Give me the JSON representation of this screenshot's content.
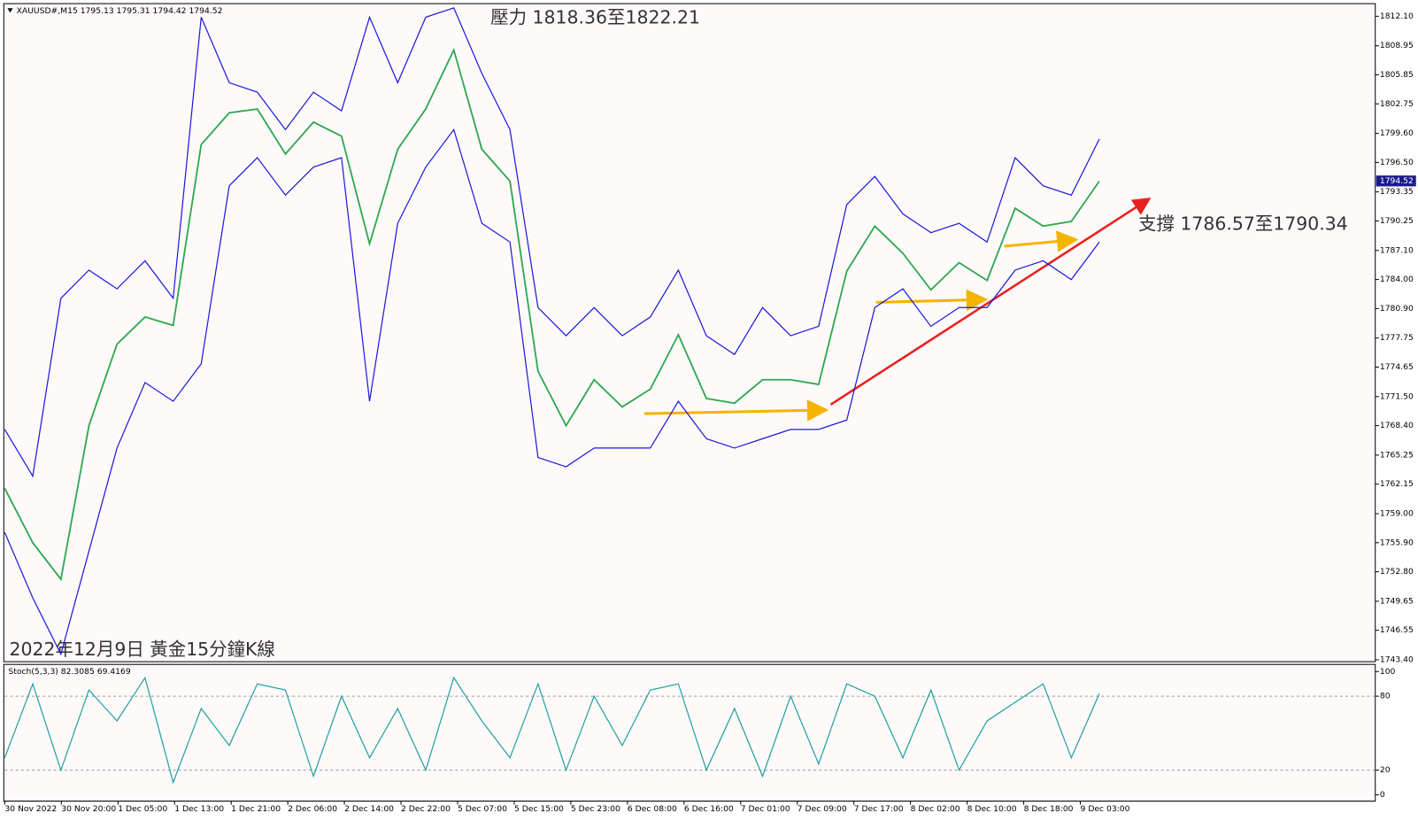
{
  "chart_data": [
    {
      "type": "line",
      "title": "XAUUSD#,M15 1795.13 1795.31 1794.42 1794.52",
      "annotations": [
        "壓力 1818.36至1822.21",
        "支撐 1786.57至1790.34",
        "2022年12月9日 黃金15分鐘K線"
      ],
      "last_price": 1794.52,
      "ylim": [
        1743.2,
        1813.45
      ],
      "yticks": [
        {
          "value": 1743.4,
          "label": "1743.40"
        },
        1746.55,
        1749.65,
        {
          "value": 1752.8,
          "label": "1752.80"
        },
        {
          "value": 1755.9,
          "label": "1755.90"
        },
        {
          "value": 1759,
          "label": "1759.00"
        },
        1762.15,
        1765.25,
        {
          "value": 1768.4,
          "label": "1768.40"
        },
        {
          "value": 1771.5,
          "label": "1771.50"
        },
        1774.65,
        1777.75,
        {
          "value": 1780.9,
          "label": "1780.90"
        },
        {
          "value": 1784,
          "label": "1784.00"
        },
        {
          "value": 1787.1,
          "label": "1787.10"
        },
        1790.25,
        1793.35,
        {
          "value": 1796.5,
          "label": "1796.50"
        },
        {
          "value": 1799.6,
          "label": "1799.60"
        },
        1802.75,
        1805.85,
        1808.95,
        {
          "value": 1812.1,
          "label": "1812.10"
        }
      ],
      "x_labels": [
        "30 Nov 2022",
        "30 Nov 20:00",
        "1 Dec 05:00",
        "1 Dec 13:00",
        "1 Dec 21:00",
        "2 Dec 06:00",
        "2 Dec 14:00",
        "2 Dec 22:00",
        "5 Dec 07:00",
        "5 Dec 15:00",
        "5 Dec 23:00",
        "6 Dec 08:00",
        "6 Dec 16:00",
        "7 Dec 01:00",
        "7 Dec 09:00",
        "7 Dec 17:00",
        "8 Dec 02:00",
        "8 Dec 10:00",
        "8 Dec 18:00",
        "9 Dec 03:00"
      ],
      "series": [
        {
          "color": "#1a1adb",
          "values": [
            1768,
            1763,
            1782,
            1785,
            1783,
            1786,
            1782,
            1812,
            1805,
            1804,
            1800,
            1804,
            1802,
            1812,
            1805,
            1812,
            1813,
            1806,
            1800,
            1781,
            1778,
            1781,
            1778,
            1780,
            1785,
            1778,
            1776,
            1781,
            1778,
            1779,
            1792,
            1795,
            1791,
            1789,
            1790,
            1788,
            1797,
            1794,
            1793,
            1799
          ]
        },
        {
          "color": "#1a1adb",
          "values": [
            1757,
            1750,
            1744,
            1755,
            1766,
            1773,
            1771,
            1775,
            1794,
            1797,
            1793,
            1796,
            1797,
            1771,
            1790,
            1796,
            1800,
            1790,
            1788,
            1765,
            1764,
            1766,
            1766,
            1766,
            1771,
            1767,
            1766,
            1767,
            1768,
            1768,
            1769,
            1781,
            1783,
            1779,
            1781,
            1781,
            1785,
            1786,
            1784,
            1788
          ]
        },
        {
          "color": "#2fa84f",
          "values": [
            1761.7,
            1755.9,
            1752,
            1768.4,
            1777.1,
            1780,
            1779.1,
            1798.4,
            1801.8,
            1802.2,
            1797.4,
            1800.8,
            1799.3,
            1787.8,
            1797.9,
            1802.2,
            1808.5,
            1797.9,
            1794.5,
            1774.2,
            1768.4,
            1773.3,
            1770.4,
            1772.3,
            1778.1,
            1771.3,
            1770.8,
            1773.3,
            1773.3,
            1772.8,
            1784.9,
            1789.7,
            1786.8,
            1782.9,
            1785.8,
            1783.9,
            1791.6,
            1789.7,
            1790.2,
            1794.5
          ]
        }
      ]
    },
    {
      "type": "line",
      "title": "Stoch(5,3,3) 82.3085 69.4169",
      "ylim": [
        -5.1,
        105.8
      ],
      "yticks": [
        0,
        20,
        80,
        100
      ],
      "series": [
        {
          "color": "#20a0a0",
          "values": [
            30,
            90,
            20,
            85,
            60,
            95,
            10,
            70,
            40,
            90,
            85,
            15,
            80,
            30,
            70,
            20,
            95,
            60,
            30,
            90,
            20,
            80,
            40,
            85,
            90,
            20,
            70,
            15,
            80,
            25,
            90,
            80,
            30,
            85,
            20,
            60,
            75,
            90,
            30,
            82
          ]
        }
      ]
    }
  ]
}
